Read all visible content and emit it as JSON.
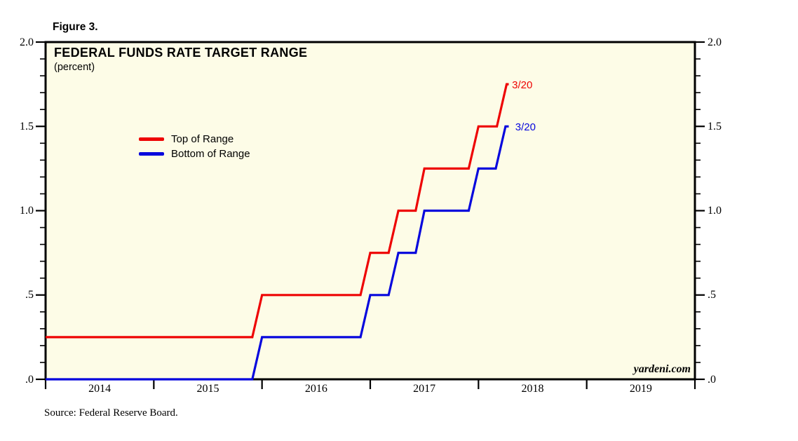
{
  "figure_label": "Figure 3.",
  "source_note": "Source: Federal Reserve Board.",
  "watermark": "yardeni.com",
  "colors": {
    "plot_background": "#fdfce7",
    "axis": "#000000",
    "top_of_range": "#ee0404",
    "bottom_of_range": "#0707dd"
  },
  "chart_data": {
    "type": "line",
    "title": "FEDERAL FUNDS RATE TARGET RANGE",
    "subtitle": "(percent)",
    "xlabel": "",
    "ylabel": "",
    "xlim": [
      2014,
      2020
    ],
    "ylim": [
      0,
      2
    ],
    "grid": false,
    "legend_position": "upper-left-inside",
    "y_minor_step": 0.1,
    "y_ticks": [
      {
        "value": 0.0,
        "label": ".0"
      },
      {
        "value": 0.5,
        "label": ".5"
      },
      {
        "value": 1.0,
        "label": "1.0"
      },
      {
        "value": 1.5,
        "label": "1.5"
      },
      {
        "value": 2.0,
        "label": "2.0"
      }
    ],
    "x_boundary_ticks": [
      2014,
      2015,
      2016,
      2017,
      2018,
      2019,
      2020
    ],
    "x_year_labels": [
      {
        "year": 2014,
        "label": "2014"
      },
      {
        "year": 2015,
        "label": "2015"
      },
      {
        "year": 2016,
        "label": "2016"
      },
      {
        "year": 2017,
        "label": "2017"
      },
      {
        "year": 2018,
        "label": "2018"
      },
      {
        "year": 2019,
        "label": "2019"
      }
    ],
    "series": [
      {
        "name": "Top of Range",
        "color": "#ee0404",
        "points": [
          [
            2014.0,
            0.25
          ],
          [
            2015.91,
            0.25
          ],
          [
            2016.0,
            0.5
          ],
          [
            2016.91,
            0.5
          ],
          [
            2017.0,
            0.75
          ],
          [
            2017.17,
            0.75
          ],
          [
            2017.26,
            1.0
          ],
          [
            2017.42,
            1.0
          ],
          [
            2017.5,
            1.25
          ],
          [
            2017.91,
            1.25
          ],
          [
            2018.0,
            1.5
          ],
          [
            2018.17,
            1.5
          ],
          [
            2018.26,
            1.75
          ],
          [
            2018.28,
            1.75
          ]
        ]
      },
      {
        "name": "Bottom of Range",
        "color": "#0707dd",
        "points": [
          [
            2014.0,
            0.0
          ],
          [
            2015.91,
            0.0
          ],
          [
            2016.0,
            0.25
          ],
          [
            2016.91,
            0.25
          ],
          [
            2017.0,
            0.5
          ],
          [
            2017.17,
            0.5
          ],
          [
            2017.26,
            0.75
          ],
          [
            2017.42,
            0.75
          ],
          [
            2017.5,
            1.0
          ],
          [
            2017.91,
            1.0
          ],
          [
            2018.0,
            1.25
          ],
          [
            2018.16,
            1.25
          ],
          [
            2018.25,
            1.5
          ],
          [
            2018.28,
            1.5
          ]
        ]
      }
    ],
    "annotations": [
      {
        "text": "3/20",
        "color": "#ee0404",
        "x": 2018.31,
        "y": 1.745
      },
      {
        "text": "3/20",
        "color": "#0707dd",
        "x": 2018.34,
        "y": 1.495
      }
    ]
  }
}
